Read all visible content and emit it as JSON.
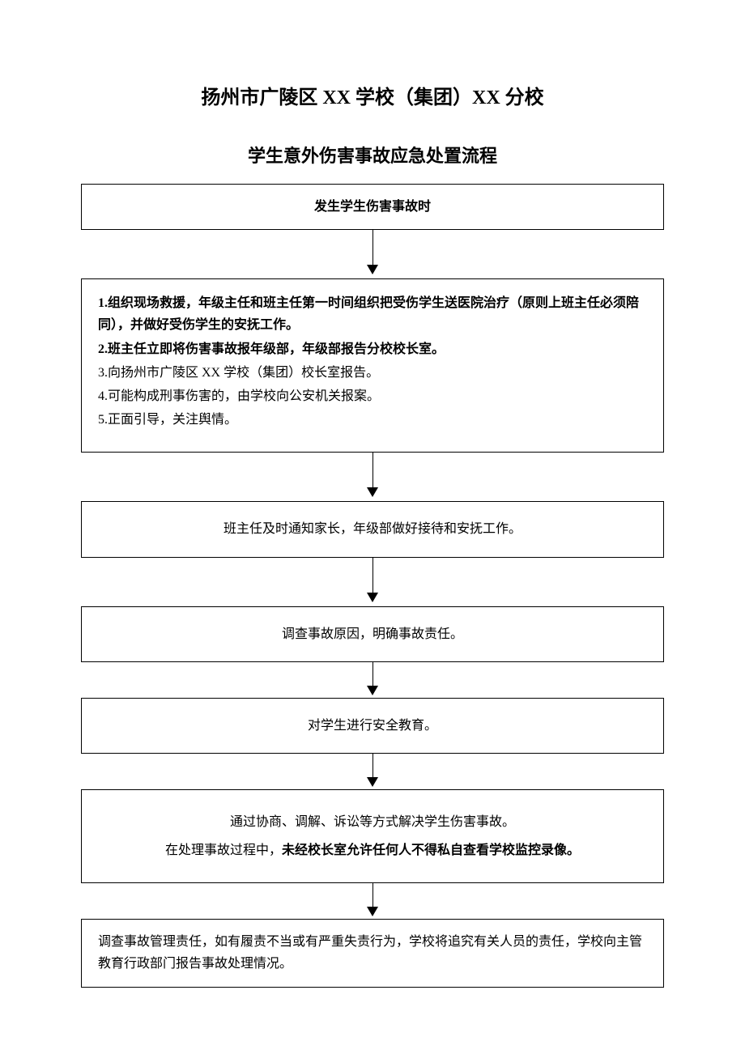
{
  "page": {
    "title": "扬州市广陵区 XX 学校（集团）XX 分校",
    "subtitle": "学生意外伤害事故应急处置流程",
    "background_color": "#ffffff",
    "text_color": "#000000",
    "border_color": "#000000",
    "title_fontsize": 24,
    "subtitle_fontsize": 22,
    "body_fontsize": 16
  },
  "flowchart": {
    "type": "flowchart",
    "direction": "vertical",
    "arrow_style": {
      "line_width": 1.5,
      "head_width": 14,
      "head_height": 12,
      "color": "#000000"
    },
    "node_style": {
      "border_width": 1.5,
      "border_color": "#000000",
      "background": "#ffffff"
    },
    "nodes": [
      {
        "id": "n1",
        "align": "center",
        "bold": true,
        "text": "发生学生伤害事故时"
      },
      {
        "id": "n2",
        "align": "left",
        "lines": [
          {
            "bold_prefix": "1.组织现场救援，年级主任和班主任第一时间组织把受伤学生送医院治疗（原则上班主任必须陪同），并做好受伤学生的安抚工作。"
          },
          {
            "bold_prefix": "2.班主任立即将伤害事故报年级部，年级部报告分校校长室。"
          },
          {
            "plain": "3.向扬州市广陵区 XX 学校（集团）校长室报告。"
          },
          {
            "plain": "4.可能构成刑事伤害的，由学校向公安机关报案。"
          },
          {
            "plain": "5.正面引导，关注舆情。"
          }
        ]
      },
      {
        "id": "n3",
        "align": "center",
        "text": "班主任及时通知家长，年级部做好接待和安抚工作。"
      },
      {
        "id": "n4",
        "align": "center",
        "text": "调查事故原因，明确事故责任。"
      },
      {
        "id": "n5",
        "align": "center",
        "text": "对学生进行安全教育。"
      },
      {
        "id": "n6",
        "align": "center",
        "mixed": {
          "line1": "通过协商、调解、诉讼等方式解决学生伤害事故。",
          "line2_plain": "在处理事故过程中，",
          "line2_bold": "未经校长室允许任何人不得私自查看学校监控录像。"
        }
      },
      {
        "id": "n7",
        "align": "left",
        "text": "调查事故管理责任，如有履责不当或有严重失责行为，学校将追究有关人员的责任，学校向主管教育行政部门报告事故处理情况。"
      }
    ],
    "edges": [
      {
        "from": "n1",
        "to": "n2"
      },
      {
        "from": "n2",
        "to": "n3"
      },
      {
        "from": "n3",
        "to": "n4"
      },
      {
        "from": "n4",
        "to": "n5"
      },
      {
        "from": "n5",
        "to": "n6"
      },
      {
        "from": "n6",
        "to": "n7"
      }
    ]
  }
}
